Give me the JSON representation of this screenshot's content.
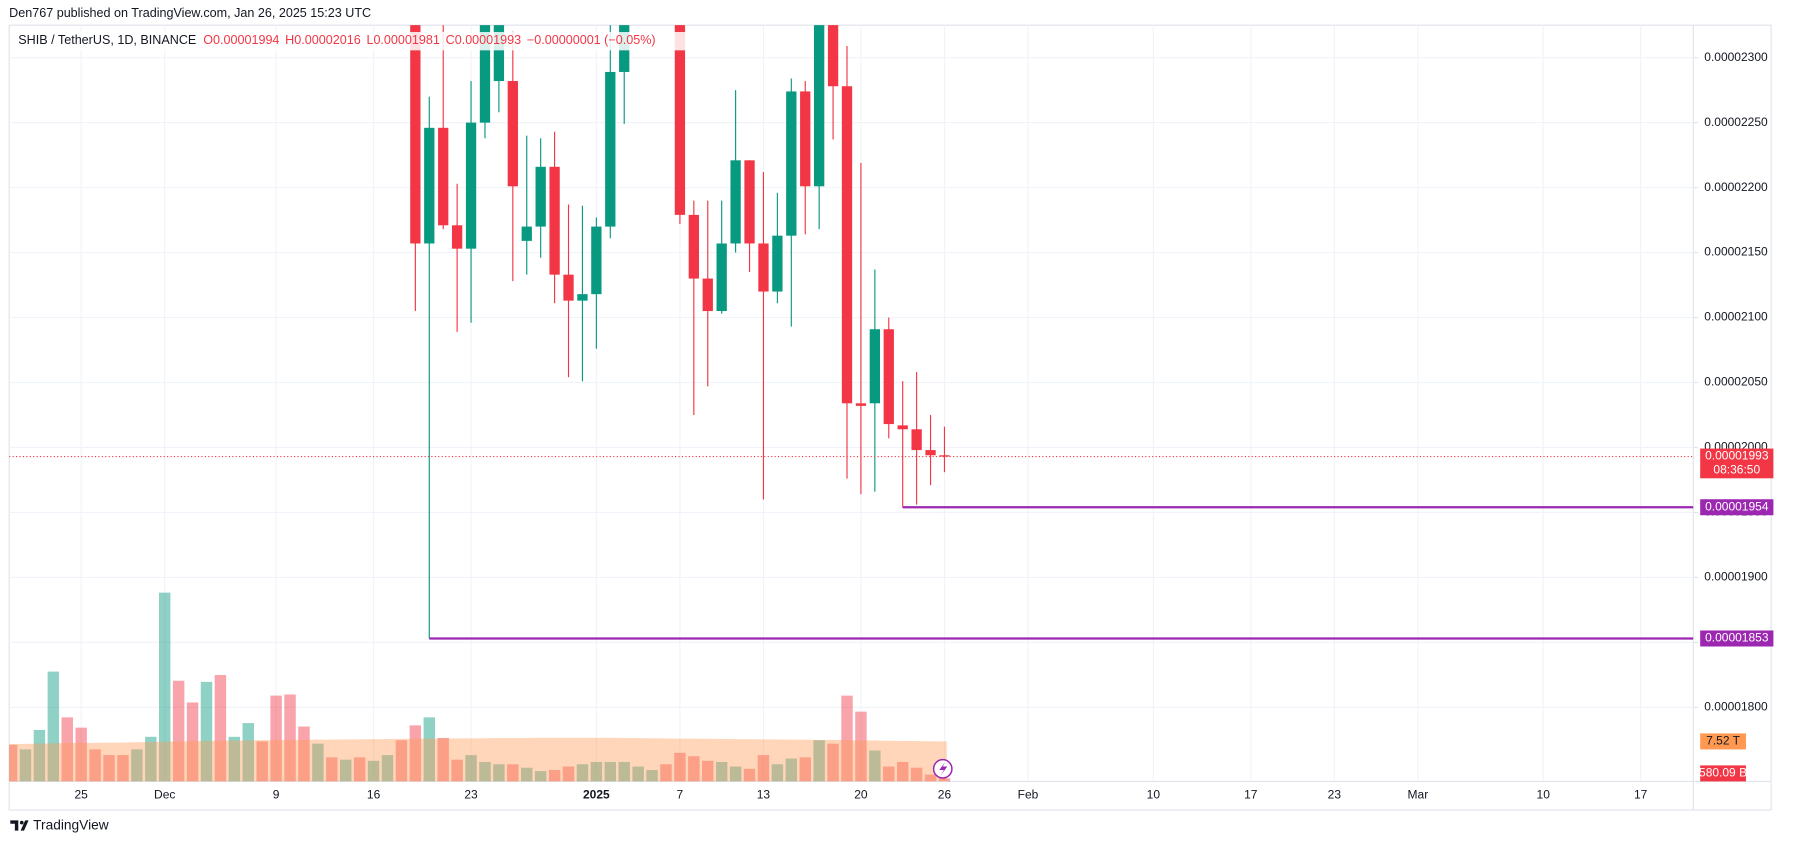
{
  "header": {
    "publisher": "Den767 published on TradingView.com, Jan 26, 2025 15:23 UTC"
  },
  "footer": {
    "logo": "TradingView"
  },
  "chart_data": {
    "type": "candlestick",
    "title": "SHIB / TetherUS, 1D, BINANCE",
    "ohlc_labels": [
      "O0.00001994",
      "H0.00002016",
      "L0.00001981",
      "C0.00001993",
      "−0.00000001 (−0.05%)"
    ],
    "categories": [
      null,
      null,
      null,
      null,
      null,
      "25",
      null,
      null,
      null,
      null,
      null,
      "Dec",
      null,
      null,
      null,
      null,
      null,
      null,
      null,
      "9",
      null,
      null,
      null,
      null,
      null,
      null,
      "16",
      null,
      null,
      null,
      null,
      null,
      null,
      "23",
      null,
      null,
      null,
      null,
      null,
      null,
      null,
      null,
      "2025",
      null,
      null,
      null,
      null,
      null,
      "7",
      null,
      null,
      null,
      null,
      null,
      "13",
      null,
      null,
      null,
      null,
      null,
      null,
      "20",
      null,
      null,
      null,
      null,
      null,
      "26",
      null,
      null,
      null,
      null,
      null,
      "Feb",
      null,
      null,
      null,
      null,
      null,
      null,
      null,
      null,
      "10",
      null,
      null,
      null,
      null,
      null,
      null,
      "17",
      null,
      null,
      null,
      null,
      null,
      "23",
      null,
      null,
      null,
      null,
      null,
      "Mar",
      null,
      null,
      null,
      null,
      null,
      null,
      null,
      null,
      "10",
      null,
      null,
      null,
      null,
      null,
      null,
      "17",
      null,
      null,
      null
    ],
    "open": [
      null,
      null,
      null,
      null,
      null,
      null,
      null,
      null,
      null,
      null,
      null,
      null,
      null,
      null,
      null,
      null,
      null,
      null,
      null,
      null,
      null,
      null,
      null,
      null,
      null,
      null,
      null,
      null,
      null,
      2.33e-05,
      2.157e-05,
      2.246e-05,
      2.171e-05,
      2.153e-05,
      2.25e-05,
      2.282e-05,
      2.282e-05,
      2.159e-05,
      2.17e-05,
      2.216e-05,
      2.133e-05,
      2.113e-05,
      2.118e-05,
      2.17e-05,
      2.289e-05,
      2.335e-05,
      2.35e-05,
      2.41e-05,
      2.39e-05,
      2.179e-05,
      2.13e-05,
      2.105e-05,
      2.157e-05,
      2.221e-05,
      2.157e-05,
      2.12e-05,
      2.163e-05,
      2.274e-05,
      2.201e-05,
      2.34e-05,
      2.278e-05,
      2.034e-05,
      2.034e-05,
      2.091e-05,
      2.017e-05,
      2.014e-05,
      1.998e-05,
      1.994e-05,
      null,
      null,
      null,
      null,
      null,
      null,
      null,
      null,
      null,
      null,
      null,
      null,
      null,
      null,
      null,
      null,
      null,
      null,
      null,
      null,
      null,
      null,
      null,
      null,
      null,
      null,
      null,
      null,
      null,
      null,
      null,
      null,
      null,
      null,
      null,
      null,
      null,
      null,
      null,
      null,
      null,
      null,
      null,
      null,
      null,
      null,
      null,
      null,
      null,
      null,
      null,
      null,
      null
    ],
    "high": [
      null,
      null,
      null,
      null,
      null,
      null,
      null,
      null,
      null,
      null,
      null,
      null,
      null,
      null,
      null,
      null,
      null,
      null,
      null,
      null,
      null,
      null,
      null,
      null,
      null,
      null,
      null,
      null,
      null,
      2.345e-05,
      2.27e-05,
      2.34e-05,
      2.203e-05,
      2.282e-05,
      2.345e-05,
      2.35e-05,
      2.32e-05,
      2.24e-05,
      2.238e-05,
      2.243e-05,
      2.187e-05,
      2.186e-05,
      2.177e-05,
      2.34e-05,
      2.345e-05,
      2.365e-05,
      2.38e-05,
      2.43e-05,
      2.41e-05,
      2.19e-05,
      2.19e-05,
      2.19e-05,
      2.275e-05,
      2.221e-05,
      2.212e-05,
      2.196e-05,
      2.284e-05,
      2.282e-05,
      2.36e-05,
      2.36e-05,
      2.309e-05,
      2.219e-05,
      2.137e-05,
      2.1e-05,
      2.051e-05,
      2.058e-05,
      2.025e-05,
      2.016e-05,
      null,
      null,
      null,
      null,
      null,
      null,
      null,
      null,
      null,
      null,
      null,
      null,
      null,
      null,
      null,
      null,
      null,
      null,
      null,
      null,
      null,
      null,
      null,
      null,
      null,
      null,
      null,
      null,
      null,
      null,
      null,
      null,
      null,
      null,
      null,
      null,
      null,
      null,
      null,
      null,
      null,
      null,
      null,
      null,
      null,
      null,
      null,
      null,
      null,
      null,
      null,
      null,
      null
    ],
    "low": [
      null,
      null,
      null,
      null,
      null,
      null,
      null,
      null,
      null,
      null,
      null,
      null,
      null,
      null,
      null,
      null,
      null,
      null,
      null,
      null,
      null,
      null,
      null,
      null,
      null,
      null,
      null,
      null,
      null,
      2.105e-05,
      1.853e-05,
      2.168e-05,
      2.089e-05,
      2.096e-05,
      2.238e-05,
      2.258e-05,
      2.128e-05,
      2.133e-05,
      2.146e-05,
      2.111e-05,
      2.054e-05,
      2.051e-05,
      2.076e-05,
      2.161e-05,
      2.249e-05,
      2.328e-05,
      2.34e-05,
      2.38e-05,
      2.172e-05,
      2.025e-05,
      2.047e-05,
      2.103e-05,
      2.15e-05,
      2.135e-05,
      1.96e-05,
      2.111e-05,
      2.093e-05,
      2.164e-05,
      2.168e-05,
      2.237e-05,
      1.976e-05,
      1.964e-05,
      1.966e-05,
      2.007e-05,
      1.954e-05,
      1.956e-05,
      1.971e-05,
      1.981e-05,
      null,
      null,
      null,
      null,
      null,
      null,
      null,
      null,
      null,
      null,
      null,
      null,
      null,
      null,
      null,
      null,
      null,
      null,
      null,
      null,
      null,
      null,
      null,
      null,
      null,
      null,
      null,
      null,
      null,
      null,
      null,
      null,
      null,
      null,
      null,
      null,
      null,
      null,
      null,
      null,
      null,
      null,
      null,
      null,
      null,
      null,
      null,
      null,
      null,
      null,
      null,
      null,
      null
    ],
    "close": [
      null,
      null,
      null,
      null,
      null,
      null,
      null,
      null,
      null,
      null,
      null,
      null,
      null,
      null,
      null,
      null,
      null,
      null,
      null,
      null,
      null,
      null,
      null,
      null,
      null,
      null,
      null,
      null,
      null,
      2.157e-05,
      2.246e-05,
      2.171e-05,
      2.153e-05,
      2.25e-05,
      2.33e-05,
      2.34e-05,
      2.201e-05,
      2.17e-05,
      2.216e-05,
      2.133e-05,
      2.113e-05,
      2.118e-05,
      2.17e-05,
      2.289e-05,
      2.335e-05,
      2.35e-05,
      2.37e-05,
      2.39e-05,
      2.179e-05,
      2.13e-05,
      2.105e-05,
      2.157e-05,
      2.221e-05,
      2.157e-05,
      2.12e-05,
      2.163e-05,
      2.274e-05,
      2.201e-05,
      2.34e-05,
      2.278e-05,
      2.034e-05,
      2.032e-05,
      2.091e-05,
      2.018e-05,
      2.014e-05,
      1.998e-05,
      1.994e-05,
      1.993e-05,
      null,
      null,
      null,
      null,
      null,
      null,
      null,
      null,
      null,
      null,
      null,
      null,
      null,
      null,
      null,
      null,
      null,
      null,
      null,
      null,
      null,
      null,
      null,
      null,
      null,
      null,
      null,
      null,
      null,
      null,
      null,
      null,
      null,
      null,
      null,
      null,
      null,
      null,
      null,
      null,
      null,
      null,
      null,
      null,
      null,
      null,
      null,
      null,
      null,
      null,
      null,
      null,
      null
    ],
    "up_color": "#089981",
    "down_color": "#f23645",
    "ylim": [
      1.743e-05,
      2.325e-05
    ],
    "yticks": [
      {
        "value": 2.3e-05,
        "label": "0.00002300"
      },
      {
        "value": 2.25e-05,
        "label": "0.00002250"
      },
      {
        "value": 2.2e-05,
        "label": "0.00002200"
      },
      {
        "value": 2.15e-05,
        "label": "0.00002150"
      },
      {
        "value": 2.1e-05,
        "label": "0.00002100"
      },
      {
        "value": 2.05e-05,
        "label": "0.00002050"
      },
      {
        "value": 2e-05,
        "label": "0.00002000"
      },
      {
        "value": 1.95e-05,
        "label": "0.00001950"
      },
      {
        "value": 1.9e-05,
        "label": "0.00001900"
      },
      {
        "value": 1.85e-05,
        "label": "0.00001850"
      },
      {
        "value": 1.8e-05,
        "label": "0.00001800"
      }
    ],
    "grid": true,
    "last_price": {
      "value": 1.993e-05,
      "label": "0.00001993",
      "countdown": "08:36:50",
      "color": "#f23645"
    },
    "hlines": [
      {
        "value": 1.954e-05,
        "label": "0.00001954",
        "color": "#9c27b0"
      },
      {
        "value": 1.853e-05,
        "label": "0.00001853",
        "color": "#9c27b0"
      }
    ],
    "volume": {
      "values": [
        6880,
        6020,
        9675,
        20640,
        12040,
        10105,
        6020,
        4945,
        4945,
        6020,
        8385,
        35475,
        18920,
        14835,
        18705,
        19995,
        8385,
        10965,
        7525,
        16125,
        16340,
        10320,
        7095,
        4515,
        4085,
        4515,
        3870,
        4945,
        7740,
        10535,
        12040,
        8170,
        4085,
        4945,
        3655,
        3225,
        3225,
        2580,
        1935,
        2150,
        2795,
        3225,
        3655,
        3655,
        3655,
        2795,
        2150,
        3225,
        5375,
        4730,
        3870,
        3655,
        2795,
        2365,
        4945,
        3225,
        4300,
        4515,
        7740,
        7095,
        16125,
        13115,
        5805,
        2795,
        3655,
        2580,
        1290,
        580.09,
        null,
        null,
        null,
        null,
        null,
        null,
        null,
        null,
        null,
        null,
        null,
        null,
        null,
        null,
        null,
        null,
        null,
        null,
        null,
        null,
        null,
        null,
        null,
        null,
        null,
        null,
        null,
        null,
        null,
        null,
        null,
        null,
        null,
        null,
        null,
        null,
        null,
        null,
        null,
        null,
        null,
        null,
        null,
        null,
        null,
        null,
        null,
        null,
        null,
        null,
        null,
        null,
        null
      ],
      "colors": [
        "#f23645",
        "#089981",
        "#089981",
        "#089981",
        "#f23645",
        "#f23645",
        "#f23645",
        "#f23645",
        "#f23645",
        "#089981",
        "#089981",
        "#089981",
        "#f23645",
        "#f23645",
        "#089981",
        "#f23645",
        "#089981",
        "#089981",
        "#f23645",
        "#f23645",
        "#f23645",
        "#f23645",
        "#089981",
        "#f23645",
        "#089981",
        "#f23645",
        "#089981",
        "#089981",
        "#f23645",
        "#f23645",
        "#089981",
        "#f23645",
        "#f23645",
        "#089981",
        "#089981",
        "#089981",
        "#f23645",
        "#089981",
        "#089981",
        "#f23645",
        "#f23645",
        "#089981",
        "#089981",
        "#089981",
        "#089981",
        "#089981",
        "#089981",
        "#f23645",
        "#f23645",
        "#f23645",
        "#f23645",
        "#089981",
        "#089981",
        "#f23645",
        "#f23645",
        "#089981",
        "#089981",
        "#f23645",
        "#089981",
        "#f23645",
        "#f23645",
        "#f23645",
        "#089981",
        "#f23645",
        "#f23645",
        "#f23645",
        "#f23645",
        "#f23645",
        null,
        null,
        null,
        null,
        null,
        null,
        null,
        null,
        null,
        null,
        null,
        null,
        null,
        null,
        null,
        null,
        null,
        null,
        null,
        null,
        null,
        null,
        null,
        null,
        null,
        null,
        null,
        null,
        null,
        null,
        null,
        null,
        null,
        null,
        null,
        null,
        null,
        null,
        null,
        null,
        null,
        null,
        null,
        null,
        null,
        null,
        null,
        null,
        null,
        null,
        null,
        null,
        null
      ],
      "value_labels": [
        null,
        null,
        null,
        null,
        null,
        null,
        null,
        null,
        null,
        null,
        null,
        null,
        null,
        null,
        null,
        null,
        null,
        null,
        null,
        null,
        null,
        null,
        null,
        null,
        null,
        null,
        null,
        null,
        null,
        null,
        null,
        null,
        null,
        null,
        null,
        null,
        null,
        null,
        null,
        null,
        null,
        null,
        null,
        null,
        null,
        null,
        null,
        null,
        null,
        null,
        null,
        null,
        null,
        null,
        null,
        null,
        null,
        null,
        null,
        null,
        null,
        null,
        null,
        null,
        null,
        null,
        null,
        "580.09 B",
        null,
        null,
        null,
        null,
        null,
        null,
        null,
        null,
        null,
        null,
        null,
        null,
        null,
        null,
        null,
        null,
        null,
        null,
        null,
        null,
        null,
        null,
        null,
        null,
        null,
        null,
        null,
        null,
        null,
        null,
        null,
        null,
        null,
        null,
        null,
        null,
        null,
        null,
        null,
        null,
        null,
        null,
        null,
        null,
        null,
        null,
        null,
        null,
        null,
        null,
        null,
        null,
        null
      ],
      "label_color": "#f23645"
    },
    "volume_ma": {
      "values": [
        7000,
        7050,
        7100,
        7150,
        7200,
        7250,
        7250,
        7300,
        7300,
        7350,
        7400,
        7450,
        7500,
        7550,
        7600,
        7650,
        7700,
        7700,
        7750,
        7750,
        7800,
        7800,
        7850,
        7850,
        7900,
        7900,
        7950,
        7950,
        8000,
        8000,
        8050,
        8050,
        8100,
        8100,
        8100,
        8150,
        8150,
        8150,
        8200,
        8200,
        8200,
        8200,
        8200,
        8200,
        8150,
        8150,
        8100,
        8100,
        8050,
        8050,
        8000,
        8000,
        7950,
        7950,
        7900,
        7900,
        7850,
        7850,
        7800,
        7800,
        7750,
        7700,
        7700,
        7650,
        7600,
        7600,
        7550,
        7520,
        null,
        null,
        null,
        null,
        null,
        null,
        null,
        null,
        null,
        null,
        null,
        null,
        null,
        null,
        null,
        null,
        null,
        null,
        null,
        null,
        null,
        null,
        null,
        null,
        null,
        null,
        null,
        null,
        null,
        null,
        null,
        null,
        null,
        null,
        null,
        null,
        null,
        null,
        null,
        null,
        null,
        null,
        null,
        null,
        null,
        null,
        null,
        null,
        null,
        null,
        null,
        null,
        null
      ],
      "value_labels": [
        null,
        null,
        null,
        null,
        null,
        null,
        null,
        null,
        null,
        null,
        null,
        null,
        null,
        null,
        null,
        null,
        null,
        null,
        null,
        null,
        null,
        null,
        null,
        null,
        null,
        null,
        null,
        null,
        null,
        null,
        null,
        null,
        null,
        null,
        null,
        null,
        null,
        null,
        null,
        null,
        null,
        null,
        null,
        null,
        null,
        null,
        null,
        null,
        null,
        null,
        null,
        null,
        null,
        null,
        null,
        null,
        null,
        null,
        null,
        null,
        null,
        null,
        null,
        null,
        null,
        null,
        null,
        "7.52 T",
        null,
        null,
        null,
        null,
        null,
        null,
        null,
        null,
        null,
        null,
        null,
        null,
        null,
        null,
        null,
        null,
        null,
        null,
        null,
        null,
        null,
        null,
        null,
        null,
        null,
        null,
        null,
        null,
        null,
        null,
        null,
        null,
        null,
        null,
        null,
        null,
        null,
        null,
        null,
        null,
        null,
        null,
        null,
        null,
        null,
        null,
        null,
        null,
        null,
        null,
        null,
        null,
        null
      ],
      "color": "#ff9850"
    }
  }
}
